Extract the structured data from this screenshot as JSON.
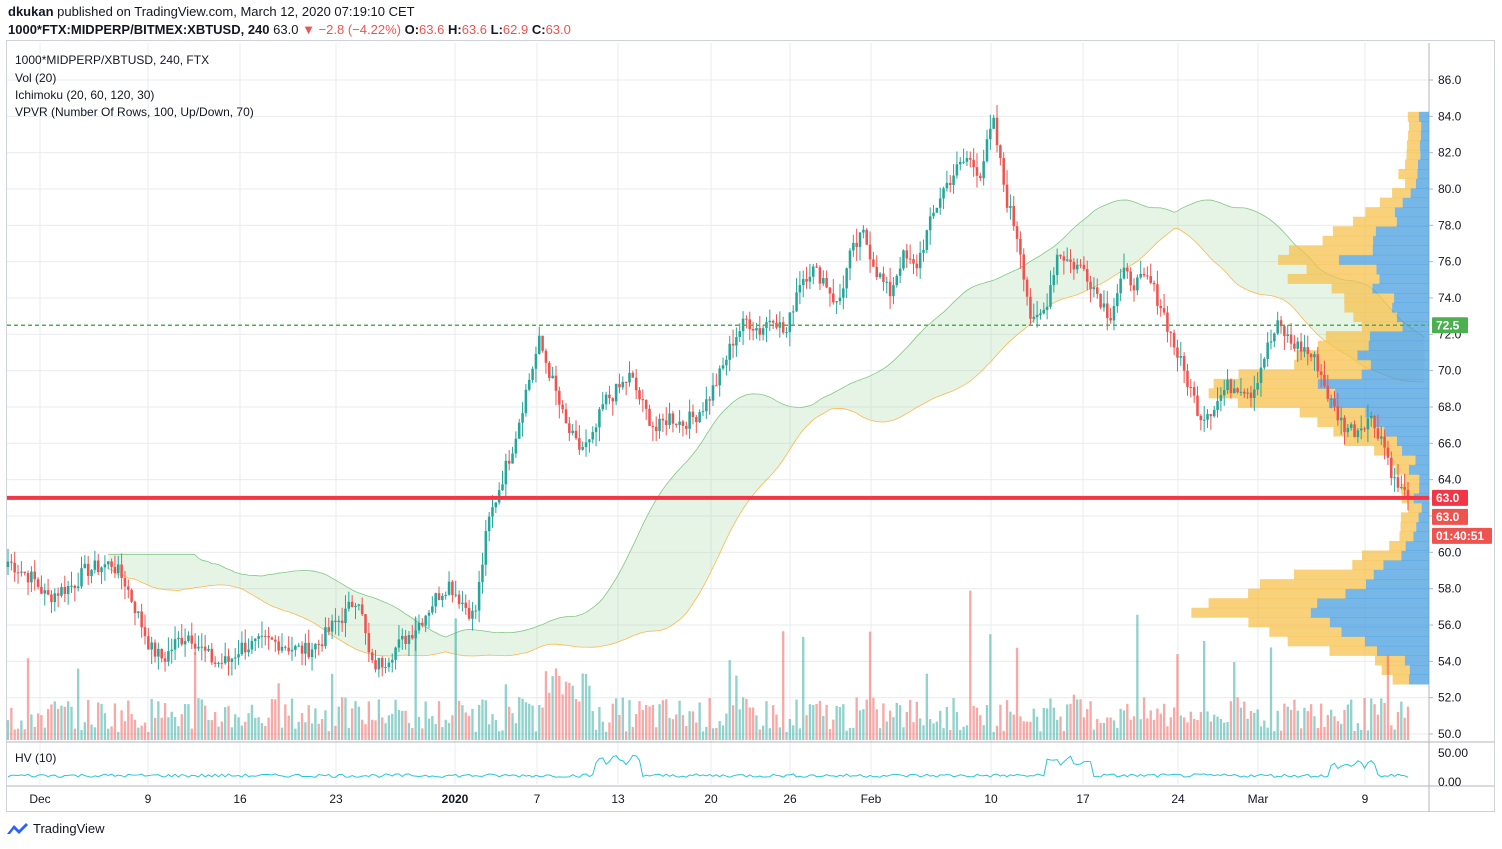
{
  "header": {
    "author": "dkukan",
    "published_text": "published on TradingView.com, March 12, 2020 07:19:10 CET",
    "symbol": "1000*FTX:MIDPERP/BITMEX:XBTUSD, 240",
    "last": "63.0",
    "change": "−2.8 (−4.22%)",
    "o_label": "O:",
    "o": "63.6",
    "h_label": "H:",
    "h": "63.6",
    "l_label": "L:",
    "l": "62.9",
    "c_label": "C:",
    "c": "63.0"
  },
  "legend": {
    "symbol": "1000*MIDPERP/XBTUSD, 240, FTX",
    "vol": "Vol (20)",
    "ichimoku": "Ichimoku (20, 60, 120, 30)",
    "vpvr": "VPVR (Number Of Rows, 100, Up/Down, 70)",
    "hv": "HV (10)"
  },
  "footer": {
    "brand": "TradingView"
  },
  "colors": {
    "up": "#26a69a",
    "down": "#ef5350",
    "grid": "#e9ebee",
    "vpvr_up": "#4a9fe0",
    "vpvr_down": "#f5c14e",
    "level_green": "#4caf50",
    "level_red": "#f23645"
  },
  "chart_data": {
    "type": "candlestick",
    "y_range": [
      49.5,
      87.5
    ],
    "y_ticks": [
      "50.0",
      "52.0",
      "54.0",
      "56.0",
      "58.0",
      "60.0",
      "62.0",
      "64.0",
      "66.0",
      "68.0",
      "70.0",
      "72.0",
      "74.0",
      "76.0",
      "78.0",
      "80.0",
      "82.0",
      "84.0",
      "86.0"
    ],
    "x_ticks": [
      "Dec",
      "9",
      "16",
      "23",
      "2020",
      "7",
      "13",
      "20",
      "26",
      "Feb",
      "10",
      "17",
      "24",
      "Mar",
      "9"
    ],
    "horizontal_levels": [
      {
        "label": "72.5",
        "value": 72.5,
        "style": "dashed",
        "color": "#4caf50"
      },
      {
        "label": "63.0",
        "value": 63.0,
        "style": "solid",
        "color": "#f23645"
      }
    ],
    "price_tags": [
      "63.0",
      "63.0",
      "01:40:51"
    ],
    "close_path": [
      59.5,
      59.0,
      58.5,
      57.5,
      57.9,
      58.2,
      59.0,
      59.2,
      59.4,
      58.4,
      56.6,
      54.7,
      54.1,
      55.1,
      55.5,
      54.6,
      53.9,
      54.0,
      54.8,
      54.9,
      55.1,
      55.0,
      54.7,
      54.6,
      55.0,
      55.9,
      56.6,
      57.7,
      53.7,
      54.0,
      54.8,
      55.5,
      56.4,
      57.5,
      58.3,
      57.3,
      56.4,
      61.5,
      63.8,
      66.0,
      69.0,
      71.6,
      69.4,
      67.0,
      65.7,
      66.0,
      68.3,
      68.9,
      69.7,
      68.0,
      66.7,
      67.5,
      67.1,
      67.5,
      68.4,
      69.9,
      71.8,
      72.8,
      72.2,
      73.1,
      71.9,
      74.9,
      75.6,
      75.0,
      73.5,
      76.4,
      77.5,
      75.5,
      74.2,
      76.3,
      75.6,
      77.8,
      79.8,
      80.9,
      81.7,
      80.9,
      83.7,
      79.5,
      77.1,
      72.4,
      73.4,
      76.6,
      75.9,
      75.6,
      74.3,
      73.0,
      75.3,
      74.8,
      75.0,
      73.5,
      71.3,
      69.4,
      67.5,
      68.0,
      69.1,
      69.2,
      68.8,
      71.0,
      72.5,
      71.5,
      71.2,
      70.4,
      68.3,
      67.0,
      66.7,
      67.5,
      66.3,
      63.8,
      63.0
    ],
    "hv_range": [
      0,
      55
    ],
    "hv_ticks": [
      "50.00",
      "0.00"
    ]
  }
}
